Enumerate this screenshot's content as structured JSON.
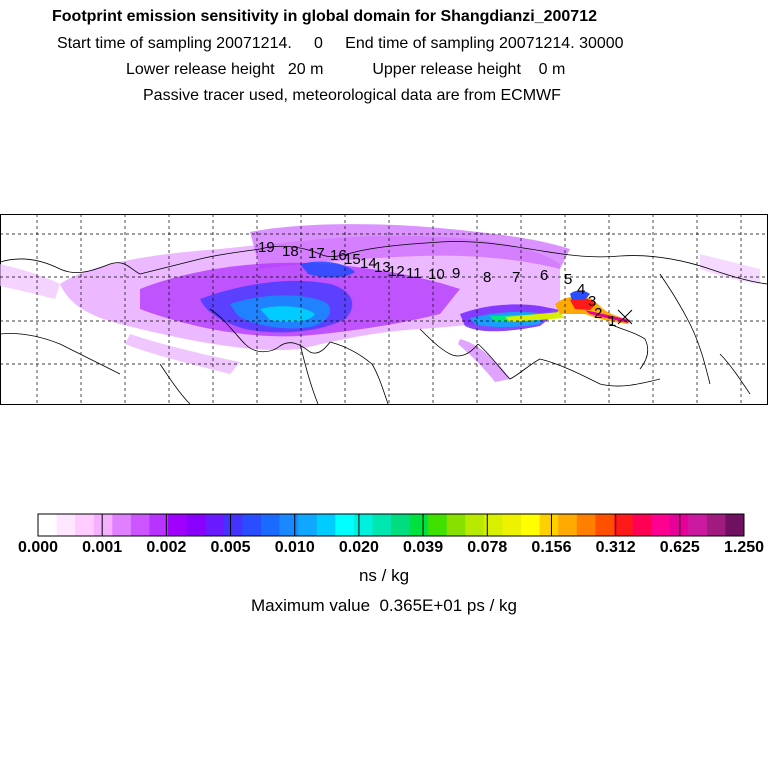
{
  "header": {
    "title": "Footprint emission sensitivity in global domain for Shangdianzi_200712",
    "line2": "Start time of sampling 20071214.     0     End time of sampling 20071214. 30000",
    "line3": "Lower release height   20 m           Upper release height    0 m",
    "line4": "Passive tracer used, meteorological data are from ECMWF"
  },
  "colorbar": {
    "colors": [
      "#ffffff",
      "#ffe6ff",
      "#ffccff",
      "#f5b0ff",
      "#e080ff",
      "#cc55ff",
      "#b833ff",
      "#a000ff",
      "#8a00ff",
      "#6a1aff",
      "#4433ff",
      "#2a4dff",
      "#1a6aff",
      "#1a88ff",
      "#10a8ff",
      "#00ccff",
      "#00ffff",
      "#00f0e0",
      "#00e6b0",
      "#00dd80",
      "#00e040",
      "#40e000",
      "#88e000",
      "#b8ea00",
      "#d8f000",
      "#eef200",
      "#ffff00",
      "#ffd000",
      "#ffaa00",
      "#ff8000",
      "#ff5000",
      "#ff1a1a",
      "#ff0055",
      "#ff0090",
      "#e6009a",
      "#cc1aa0",
      "#a01a80",
      "#701060"
    ],
    "tick_labels": [
      "0.000",
      "0.001",
      "0.002",
      "0.005",
      "0.010",
      "0.020",
      "0.039",
      "0.078",
      "0.156",
      "0.312",
      "0.625",
      "1.250"
    ],
    "unit": "ns / kg",
    "max_value_text": "Maximum value  0.365E+01 ps / kg"
  },
  "map": {
    "day_labels": [
      "1",
      "2",
      "3",
      "4",
      "5",
      "6",
      "7",
      "8",
      "9",
      "10",
      "11",
      "12",
      "13",
      "14",
      "15",
      "16",
      "17",
      "18",
      "19"
    ]
  }
}
